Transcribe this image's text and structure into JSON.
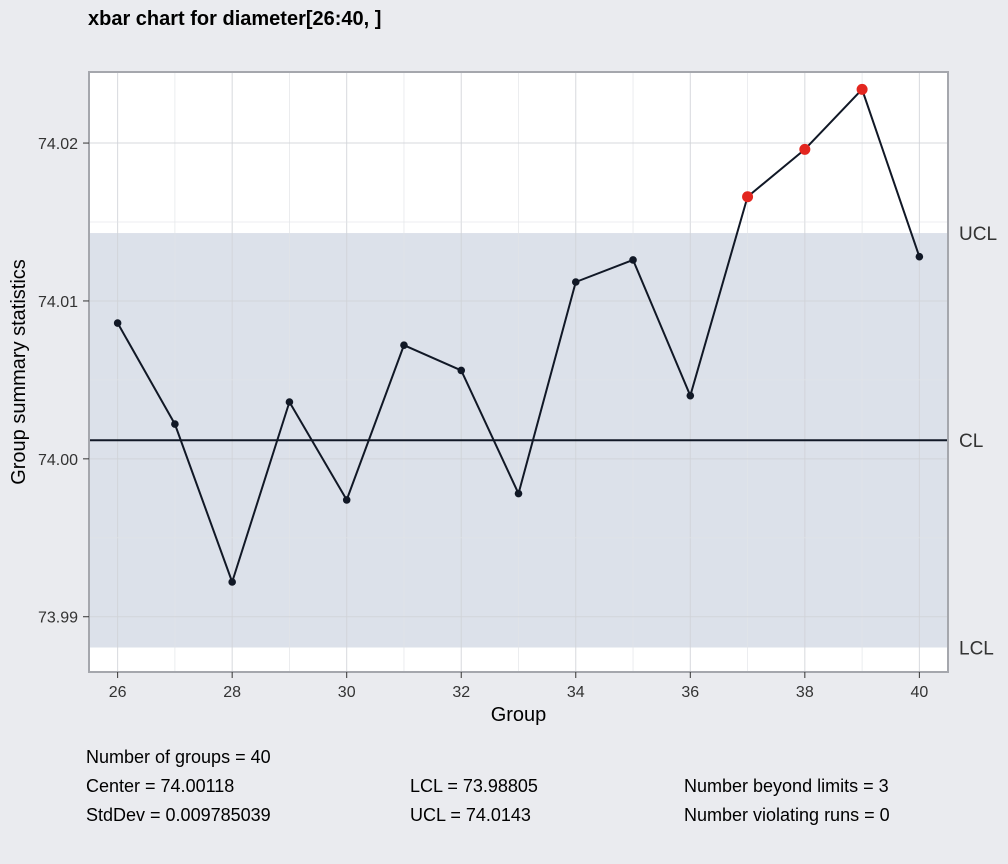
{
  "chart_data": {
    "type": "line",
    "title": "xbar chart for diameter[26:40, ]",
    "xlabel": "Group",
    "ylabel": "Group summary statistics",
    "xlim": [
      25.5,
      40.5
    ],
    "ylim": [
      73.9865,
      74.0245
    ],
    "x": [
      26,
      27,
      28,
      29,
      30,
      31,
      32,
      33,
      34,
      35,
      36,
      37,
      38,
      39,
      40
    ],
    "series": [
      {
        "values": [
          74.0086,
          74.0022,
          73.9922,
          74.0036,
          73.9974,
          74.0072,
          74.0056,
          73.9978,
          74.0112,
          74.0126,
          74.004,
          74.0166,
          74.0196,
          74.0234,
          74.0128
        ]
      }
    ],
    "violations": [
      37,
      38,
      39
    ],
    "xticks": [
      26,
      28,
      30,
      32,
      34,
      36,
      38,
      40
    ],
    "yticks": [
      73.99,
      74.0,
      74.01,
      74.02
    ],
    "ytick_labels": [
      "73.99",
      "74.00",
      "74.01",
      "74.02"
    ],
    "limits": {
      "center": 74.00118,
      "lcl": 73.98805,
      "ucl": 74.0143
    },
    "limit_labels": [
      "UCL",
      "CL",
      "LCL"
    ],
    "grid": true,
    "colors": {
      "background": "#eaebef",
      "panel": "#ffffff",
      "control_band": "#dce1ea",
      "line": "#111826",
      "violation": "#e3261f"
    }
  },
  "stats": {
    "groups": "Number of groups = 40",
    "center": "Center = 74.00118",
    "stddev": "StdDev = 0.009785039",
    "lcl": "LCL = 73.98805",
    "ucl": "UCL = 74.0143",
    "beyond": "Number beyond limits = 3",
    "violating": "Number violating runs = 0"
  }
}
